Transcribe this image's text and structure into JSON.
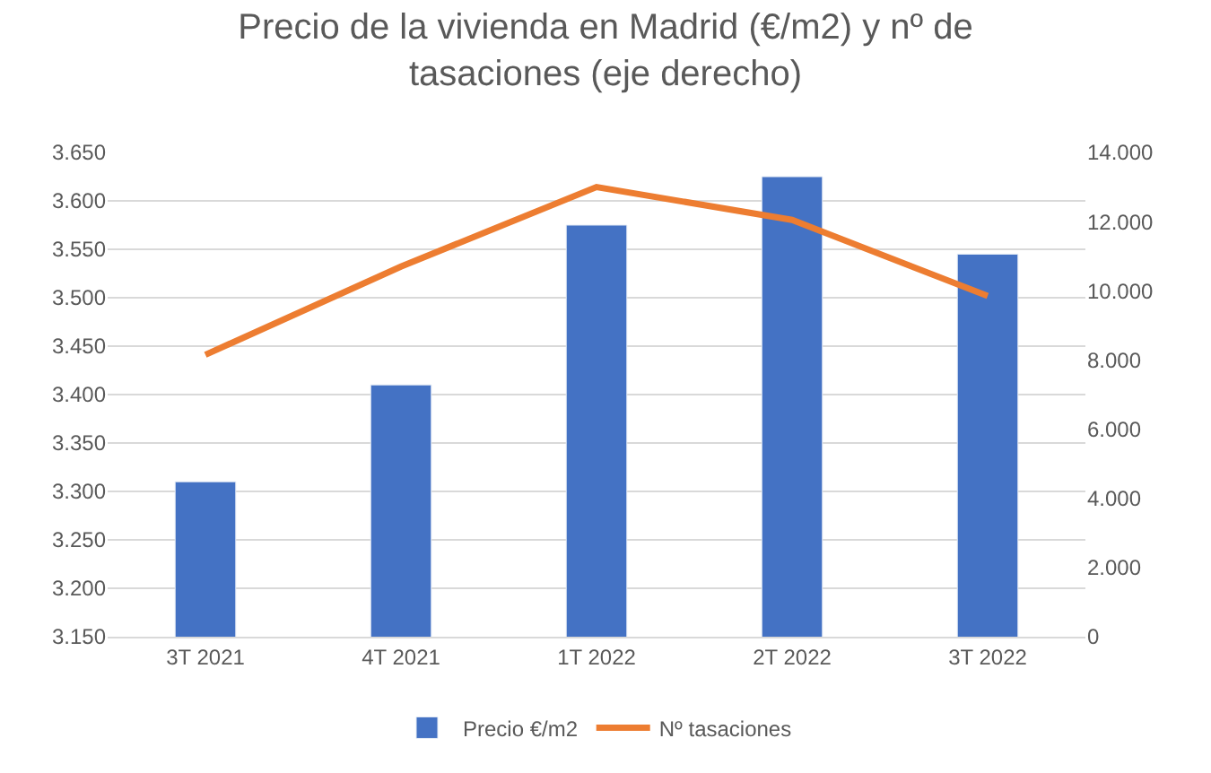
{
  "chart_data": {
    "type": "bar",
    "title": "Precio de la vivienda en Madrid (€/m2) y nº de tasaciones (eje derecho)",
    "categories": [
      "3T 2021",
      "4T 2021",
      "1T 2022",
      "2T 2022",
      "3T 2022"
    ],
    "series": [
      {
        "name": "Precio €/m2",
        "color": "#4472c4",
        "values": [
          3310,
          3410,
          3575,
          3625,
          3545
        ]
      },
      {
        "name": "Nº tasaciones",
        "type": "line",
        "axis": "y2",
        "color": "#ed7d31",
        "values": [
          8150,
          10700,
          13000,
          12050,
          9850
        ]
      }
    ],
    "ylim": [
      3150,
      3650
    ],
    "yticks": [
      {
        "value": 3150,
        "label": "3.150"
      },
      {
        "value": 3200,
        "label": "3.200"
      },
      {
        "value": 3250,
        "label": "3.250"
      },
      {
        "value": 3300,
        "label": "3.300"
      },
      {
        "value": 3350,
        "label": "3.350"
      },
      {
        "value": 3400,
        "label": "3.400"
      },
      {
        "value": 3450,
        "label": "3.450"
      },
      {
        "value": 3500,
        "label": "3.500"
      },
      {
        "value": 3550,
        "label": "3.550"
      },
      {
        "value": 3600,
        "label": "3.600"
      },
      {
        "value": 3650,
        "label": "3.650"
      }
    ],
    "y2lim": [
      0,
      14000
    ],
    "y2ticks": [
      0,
      {
        "value": 2000,
        "label": "2.000"
      },
      {
        "value": 4000,
        "label": "4.000"
      },
      {
        "value": 6000,
        "label": "6.000"
      },
      {
        "value": 8000,
        "label": "8.000"
      },
      {
        "value": 10000,
        "label": "10.000"
      },
      {
        "value": 12000,
        "label": "12.000"
      },
      {
        "value": 14000,
        "label": "14.000"
      }
    ],
    "grid": "y",
    "legend": "bottom",
    "marker": "none",
    "line_style": "solid"
  }
}
